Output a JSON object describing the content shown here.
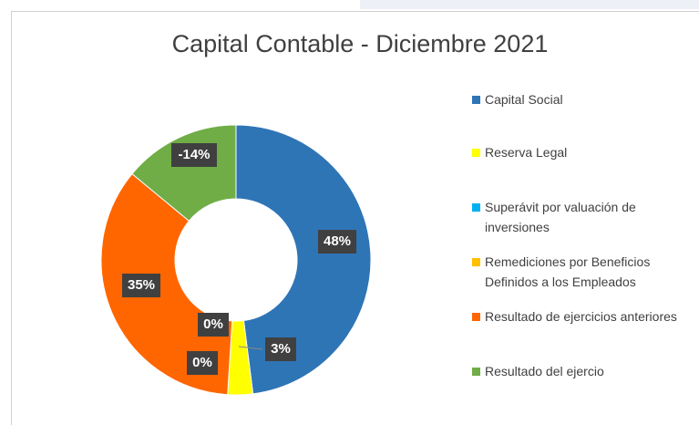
{
  "chart_data": {
    "type": "donut",
    "title": "Capital Contable - Diciembre 2021",
    "categories": [
      "Capital Social",
      "Reserva Legal",
      "Superávit por valuación de inversiones",
      "Remediciones por Beneficios Definidos a los Empleados",
      "Resultado de ejercicios anteriores",
      "Resultado del ejercio"
    ],
    "values": [
      48,
      3,
      0,
      0,
      35,
      -14
    ],
    "value_labels": [
      "48%",
      "3%",
      "0%",
      "0%",
      "35%",
      "-14%"
    ],
    "colors": [
      "#2e75b6",
      "#ffff00",
      "#00b0f0",
      "#ffc000",
      "#ff6600",
      "#70ad47"
    ],
    "legend": "right"
  }
}
